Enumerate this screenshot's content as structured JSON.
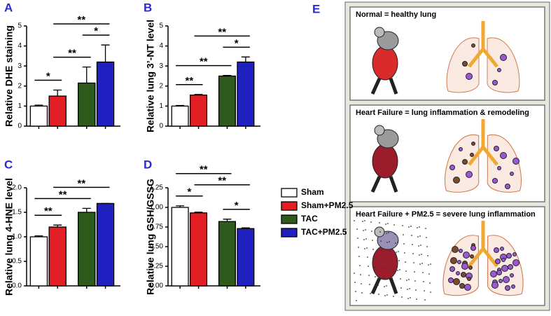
{
  "groups": {
    "names": [
      "Sham",
      "Sham+PM2.5",
      "TAC",
      "TAC+PM2.5"
    ],
    "colors": [
      "#ffffff",
      "#e31e24",
      "#2e5a1c",
      "#2020c0"
    ]
  },
  "chart_data": [
    {
      "type": "bar",
      "letter": "A",
      "ylabel": "Relative DHE staining",
      "values": [
        1.0,
        1.5,
        2.15,
        3.2
      ],
      "errors": [
        0.05,
        0.3,
        0.8,
        0.85
      ],
      "ylim": [
        0,
        5
      ],
      "yticks": [
        0,
        1,
        2,
        3,
        4,
        5
      ],
      "annotations": [
        {
          "text": "*",
          "between": [
            0,
            1
          ]
        },
        {
          "text": "**",
          "between": [
            1,
            2
          ]
        },
        {
          "text": "*",
          "between": [
            2,
            3
          ]
        },
        {
          "text": "**",
          "between": [
            1,
            3
          ]
        }
      ]
    },
    {
      "type": "bar",
      "letter": "B",
      "ylabel": "Relative lung 3’-NT level",
      "values": [
        1.0,
        1.55,
        2.5,
        3.2
      ],
      "errors": [
        0.03,
        0.03,
        0.03,
        0.25
      ],
      "ylim": [
        0,
        5
      ],
      "yticks": [
        0,
        1,
        2,
        3,
        4,
        5
      ],
      "annotations": [
        {
          "text": "**",
          "between": [
            0,
            1
          ]
        },
        {
          "text": "**",
          "between": [
            0,
            2
          ]
        },
        {
          "text": "*",
          "between": [
            2,
            3
          ]
        },
        {
          "text": "**",
          "between": [
            1,
            3
          ]
        }
      ]
    },
    {
      "type": "bar",
      "letter": "C",
      "ylabel": "Relative lung 4-HNE level",
      "values": [
        1.0,
        1.2,
        1.5,
        1.68
      ],
      "errors": [
        0.02,
        0.04,
        0.08,
        0.0
      ],
      "ylim": [
        0,
        2.0
      ],
      "yticks": [
        {
          "value": 0,
          "label": "0.0"
        },
        {
          "value": 0.5,
          "label": "0.5"
        },
        {
          "value": 1,
          "label": "1.0"
        },
        {
          "value": 1.5,
          "label": "1.5"
        },
        {
          "value": 2,
          "label": "2.0"
        }
      ],
      "annotations": [
        {
          "text": "**",
          "between": [
            0,
            1
          ]
        },
        {
          "text": "**",
          "between": [
            0,
            2
          ]
        },
        {
          "text": "**",
          "between": [
            1,
            3
          ]
        }
      ]
    },
    {
      "type": "bar",
      "letter": "D",
      "ylabel": "Relative lung GSH/GSSG",
      "values": [
        1.0,
        0.93,
        0.82,
        0.73
      ],
      "errors": [
        0.02,
        0.01,
        0.03,
        0.01
      ],
      "ylim": [
        0,
        1.25
      ],
      "yticks": [
        {
          "value": 0,
          "label": "0.00"
        },
        {
          "value": 0.25,
          "label": "0.25"
        },
        {
          "value": 0.5,
          "label": "0.50"
        },
        {
          "value": 0.75,
          "label": "0.75"
        },
        {
          "value": 1,
          "label": "1.00"
        },
        {
          "value": 1.25,
          "label": "1.25"
        }
      ],
      "legend": true,
      "annotations": [
        {
          "text": "*",
          "between": [
            2,
            3
          ]
        },
        {
          "text": "*",
          "between": [
            0,
            1
          ]
        },
        {
          "text": "**",
          "between": [
            1,
            3
          ]
        },
        {
          "text": "**",
          "between": [
            0,
            2
          ]
        }
      ]
    }
  ],
  "panel_e": {
    "letter": "E",
    "boxes": [
      "Normal = healthy lung",
      "Heart Failure = lung inflammation & remodeling",
      "Heart Failure + PM2.5 = severe lung inflammation"
    ]
  }
}
